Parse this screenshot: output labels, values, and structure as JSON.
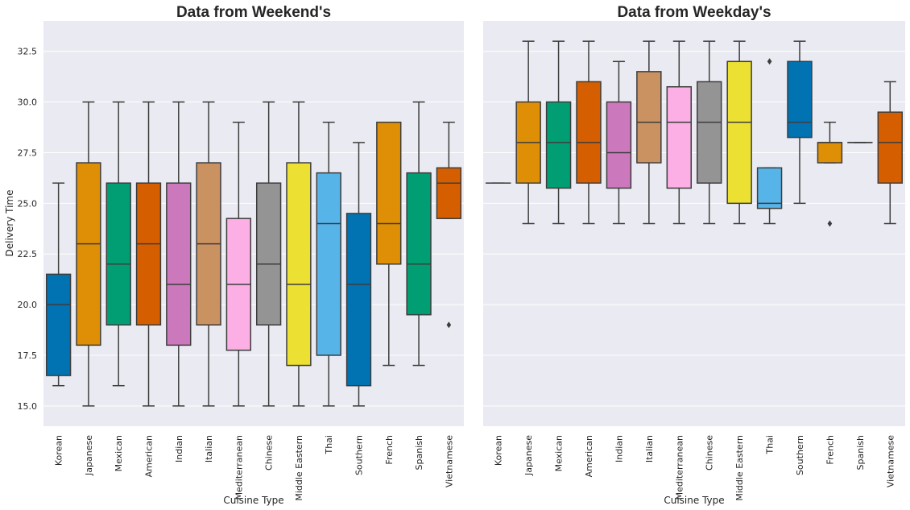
{
  "chart_data": [
    {
      "type": "box",
      "title": "Data from Weekend's",
      "xlabel": "Cuisine Type",
      "ylabel": "Delivery Time",
      "ylim": [
        14,
        34
      ],
      "yticks": [
        "15.0",
        "17.5",
        "20.0",
        "22.5",
        "25.0",
        "27.5",
        "30.0",
        "32.5"
      ],
      "grid": true,
      "categories": [
        "Korean",
        "Japanese",
        "Mexican",
        "American",
        "Indian",
        "Italian",
        "Mediterranean",
        "Chinese",
        "Middle Eastern",
        "Thai",
        "Southern",
        "French",
        "Spanish",
        "Vietnamese"
      ],
      "boxes": [
        {
          "low": 16,
          "q1": 16.5,
          "median": 20,
          "q3": 21.5,
          "high": 26,
          "outliers": []
        },
        {
          "low": 15,
          "q1": 18,
          "median": 23,
          "q3": 27,
          "high": 30,
          "outliers": []
        },
        {
          "low": 16,
          "q1": 19,
          "median": 22,
          "q3": 26,
          "high": 30,
          "outliers": []
        },
        {
          "low": 15,
          "q1": 19,
          "median": 23,
          "q3": 26,
          "high": 30,
          "outliers": []
        },
        {
          "low": 15,
          "q1": 18,
          "median": 21,
          "q3": 26,
          "high": 30,
          "outliers": []
        },
        {
          "low": 15,
          "q1": 19,
          "median": 23,
          "q3": 27,
          "high": 30,
          "outliers": []
        },
        {
          "low": 15,
          "q1": 17.75,
          "median": 21,
          "q3": 24.25,
          "high": 29,
          "outliers": []
        },
        {
          "low": 15,
          "q1": 19,
          "median": 22,
          "q3": 26,
          "high": 30,
          "outliers": []
        },
        {
          "low": 15,
          "q1": 17,
          "median": 21,
          "q3": 27,
          "high": 30,
          "outliers": []
        },
        {
          "low": 15,
          "q1": 17.5,
          "median": 24,
          "q3": 26.5,
          "high": 29,
          "outliers": []
        },
        {
          "low": 15,
          "q1": 16,
          "median": 21,
          "q3": 24.5,
          "high": 28,
          "outliers": []
        },
        {
          "low": 17,
          "q1": 22,
          "median": 24,
          "q3": 29,
          "high": 29,
          "outliers": []
        },
        {
          "low": 17,
          "q1": 19.5,
          "median": 22,
          "q3": 26.5,
          "high": 30,
          "outliers": []
        },
        {
          "low": 24.25,
          "q1": 24.25,
          "median": 26,
          "q3": 26.75,
          "high": 29,
          "outliers": [
            19
          ]
        }
      ]
    },
    {
      "type": "box",
      "title": "Data from Weekday's",
      "xlabel": "Cuisine Type",
      "ylabel": "",
      "ylim": [
        14,
        34
      ],
      "grid": true,
      "categories": [
        "Korean",
        "Japanese",
        "Mexican",
        "American",
        "Indian",
        "Italian",
        "Mediterranean",
        "Chinese",
        "Middle Eastern",
        "Thai",
        "Southern",
        "French",
        "Spanish",
        "Vietnamese"
      ],
      "boxes": [
        {
          "low": 26,
          "q1": 26,
          "median": 26,
          "q3": 26,
          "high": 26,
          "outliers": []
        },
        {
          "low": 24,
          "q1": 26,
          "median": 28,
          "q3": 30,
          "high": 33,
          "outliers": []
        },
        {
          "low": 24,
          "q1": 25.75,
          "median": 28,
          "q3": 30,
          "high": 33,
          "outliers": []
        },
        {
          "low": 24,
          "q1": 26,
          "median": 28,
          "q3": 31,
          "high": 33,
          "outliers": []
        },
        {
          "low": 24,
          "q1": 25.75,
          "median": 27.5,
          "q3": 30,
          "high": 32,
          "outliers": []
        },
        {
          "low": 24,
          "q1": 27,
          "median": 29,
          "q3": 31.5,
          "high": 33,
          "outliers": []
        },
        {
          "low": 24,
          "q1": 25.75,
          "median": 29,
          "q3": 30.75,
          "high": 33,
          "outliers": []
        },
        {
          "low": 24,
          "q1": 26,
          "median": 29,
          "q3": 31,
          "high": 33,
          "outliers": []
        },
        {
          "low": 24,
          "q1": 25,
          "median": 29,
          "q3": 32,
          "high": 33,
          "outliers": []
        },
        {
          "low": 24,
          "q1": 24.75,
          "median": 25,
          "q3": 26.75,
          "high": 26.75,
          "outliers": [
            32
          ]
        },
        {
          "low": 25,
          "q1": 28.25,
          "median": 29,
          "q3": 32,
          "high": 33,
          "outliers": []
        },
        {
          "low": 27,
          "q1": 27,
          "median": 28,
          "q3": 28,
          "high": 29,
          "outliers": [
            24
          ]
        },
        {
          "low": 28,
          "q1": 28,
          "median": 28,
          "q3": 28,
          "high": 28,
          "outliers": []
        },
        {
          "low": 24,
          "q1": 26,
          "median": 28,
          "q3": 29.5,
          "high": 31,
          "outliers": []
        }
      ]
    }
  ],
  "style": {
    "palette": [
      "#0173b2",
      "#de8f05",
      "#029e73",
      "#d55e00",
      "#cc78bc",
      "#ca9161",
      "#fbafe4",
      "#949494",
      "#ece133",
      "#56b4e9"
    ],
    "plot_background": "#eaeaf2",
    "grid_color": "#ffffff",
    "line_color": "#3d3d3d"
  }
}
